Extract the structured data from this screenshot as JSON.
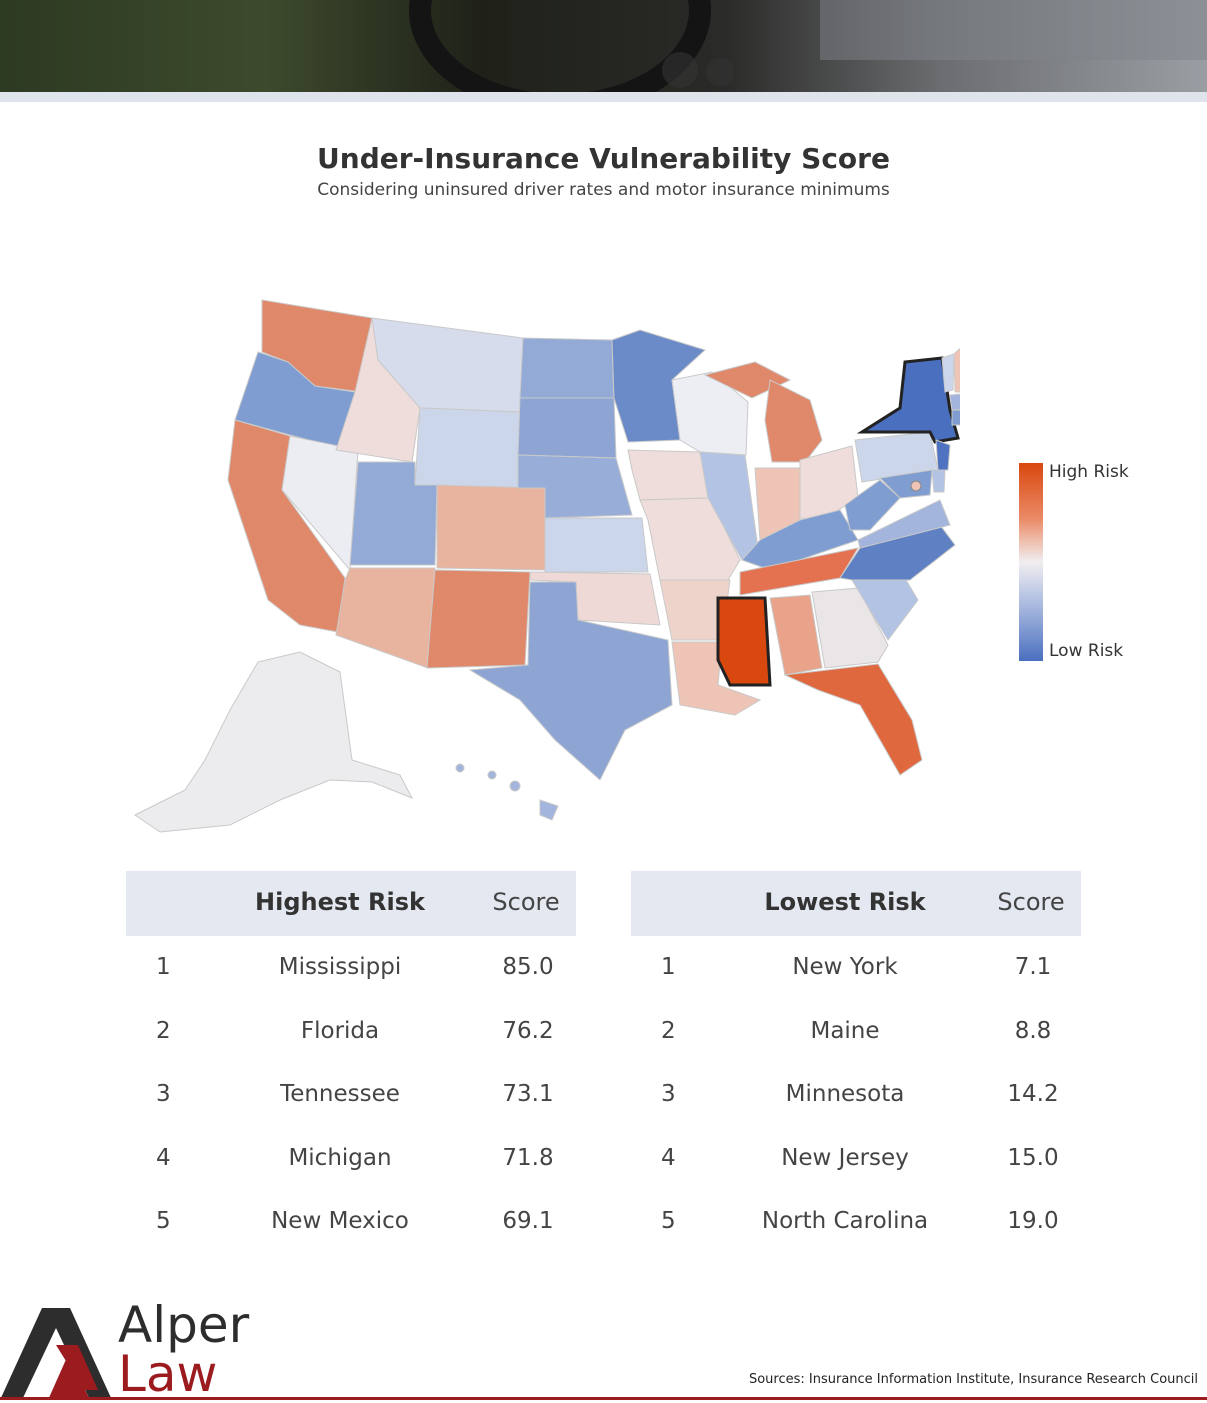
{
  "title": "Under-Insurance Vulnerability Score",
  "subtitle": "Considering uninsured driver rates and motor insurance minimums",
  "legend": {
    "high": "High Risk",
    "low": "Low Risk",
    "colors": {
      "high": "#d9480f",
      "mid": "#f1eef0",
      "low": "#4a6fbf"
    }
  },
  "highest_table": {
    "header": "Highest Risk",
    "score_header": "Score",
    "rows": [
      {
        "rank": "1",
        "state": "Mississippi",
        "score": "85.0"
      },
      {
        "rank": "2",
        "state": "Florida",
        "score": "76.2"
      },
      {
        "rank": "3",
        "state": "Tennessee",
        "score": "73.1"
      },
      {
        "rank": "4",
        "state": "Michigan",
        "score": "71.8"
      },
      {
        "rank": "5",
        "state": "New Mexico",
        "score": "69.1"
      }
    ]
  },
  "lowest_table": {
    "header": "Lowest Risk",
    "score_header": "Score",
    "rows": [
      {
        "rank": "1",
        "state": "New York",
        "score": "7.1"
      },
      {
        "rank": "2",
        "state": "Maine",
        "score": "8.8"
      },
      {
        "rank": "3",
        "state": "Minnesota",
        "score": "14.2"
      },
      {
        "rank": "4",
        "state": "New Jersey",
        "score": "15.0"
      },
      {
        "rank": "5",
        "state": "North Carolina",
        "score": "19.0"
      }
    ]
  },
  "logo": {
    "word1": "Alper",
    "word2": "Law"
  },
  "sources": "Sources: Insurance Information Institute, Insurance Research Council"
}
